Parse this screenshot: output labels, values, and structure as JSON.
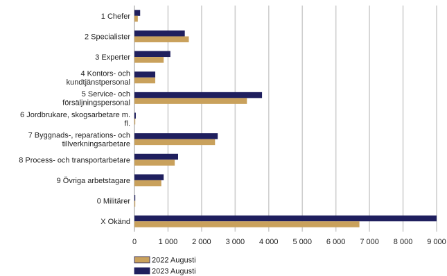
{
  "chart_data": {
    "type": "bar",
    "orientation": "horizontal",
    "categories": [
      "1 Chefer",
      "2 Specialister",
      "3 Experter",
      "4 Kontors- och kundtjänstpersonal",
      "5 Service- och försäljningspersonal",
      "6 Jordbrukare, skogsarbetare m. fl.",
      "7 Byggnads-, reparations- och tillverkningsarbetare",
      "8 Process- och transportarbetare",
      "9 Övriga arbetstagare",
      "0 Militärer",
      "X Okänd"
    ],
    "category_label_lines": [
      [
        "1 Chefer"
      ],
      [
        "2 Specialister"
      ],
      [
        "3 Experter"
      ],
      [
        "4 Kontors- och",
        "kundtjänstpersonal"
      ],
      [
        "5 Service- och",
        "försäljningspersonal"
      ],
      [
        "6 Jordbrukare, skogsarbetare m.",
        "fl."
      ],
      [
        "7 Byggnads-, reparations- och",
        "tillverkningsarbetare"
      ],
      [
        "8 Process- och transportarbetare"
      ],
      [
        "9 Övriga arbetstagare"
      ],
      [
        "0 Militärer"
      ],
      [
        "X Okänd"
      ]
    ],
    "series": [
      {
        "name": "2023 Augusti",
        "color": "#1f1f5e",
        "values": [
          170,
          1500,
          1070,
          620,
          3800,
          40,
          2480,
          1300,
          870,
          20,
          9000
        ]
      },
      {
        "name": "2022 Augusti",
        "color": "#c9a15c",
        "values": [
          100,
          1620,
          870,
          620,
          3350,
          20,
          2400,
          1200,
          800,
          10,
          6700
        ]
      }
    ],
    "xlim": [
      0,
      9000
    ],
    "xticks": [
      0,
      1000,
      2000,
      3000,
      4000,
      5000,
      6000,
      7000,
      8000,
      9000
    ],
    "xtick_labels": [
      "0",
      "1 000",
      "2 000",
      "3 000",
      "4 000",
      "5 000",
      "6 000",
      "7 000",
      "8 000",
      "9 000"
    ],
    "grid": true,
    "legend": {
      "position": "bottom-left",
      "entries": [
        "2022 Augusti",
        "2023 Augusti"
      ]
    },
    "title": "",
    "xlabel": "",
    "ylabel": ""
  }
}
